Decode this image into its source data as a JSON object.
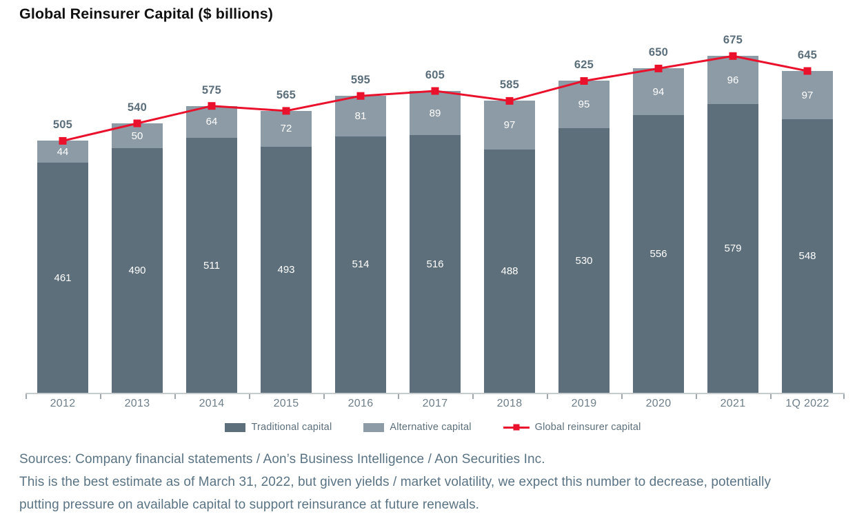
{
  "title": "Global Reinsurer Capital ($ billions)",
  "chart_data": {
    "type": "bar",
    "subtype": "stacked-bars-with-total-line",
    "title": "Global Reinsurer Capital ($ billions)",
    "categories": [
      "2012",
      "2013",
      "2014",
      "2015",
      "2016",
      "2017",
      "2018",
      "2019",
      "2020",
      "2021",
      "1Q 2022"
    ],
    "series": [
      {
        "name": "Traditional capital",
        "role": "bar",
        "color": "#5d6f7b",
        "values": [
          461,
          490,
          511,
          493,
          514,
          516,
          488,
          530,
          556,
          579,
          548
        ]
      },
      {
        "name": "Alternative capital",
        "role": "bar",
        "color": "#8c9ba5",
        "values": [
          44,
          50,
          64,
          72,
          81,
          89,
          97,
          95,
          94,
          96,
          97
        ]
      },
      {
        "name": "Global reinsurer capital",
        "role": "line",
        "color": "#e9112b",
        "values": [
          505,
          540,
          575,
          565,
          595,
          605,
          585,
          625,
          650,
          675,
          645
        ]
      }
    ],
    "stacked": true,
    "grid": false,
    "y_axis_visible": false,
    "legend_position": "bottom",
    "ylim": [
      0,
      732
    ],
    "value_labels": true
  },
  "footer": {
    "sources": "Sources: Company financial statements / Aon’s Business Intelligence / Aon Securities Inc.",
    "note": "This is the best estimate as of March 31, 2022, but given yields / market volatility, we expect this number to decrease, potentially putting pressure on available capital to support reinsurance at future renewals."
  },
  "colors": {
    "traditional": "#5d6f7b",
    "alternative": "#8c9ba5",
    "line": "#e9112b",
    "total_label": "#5b6e7a",
    "bar_label": "#ffffff",
    "axis_label": "#6e7f8a",
    "legend_text": "#5b6e7a",
    "footer_text": "#5a7383",
    "axis_line": "#c5cacd",
    "tick": "#9fa8ae",
    "title": "#111111"
  }
}
